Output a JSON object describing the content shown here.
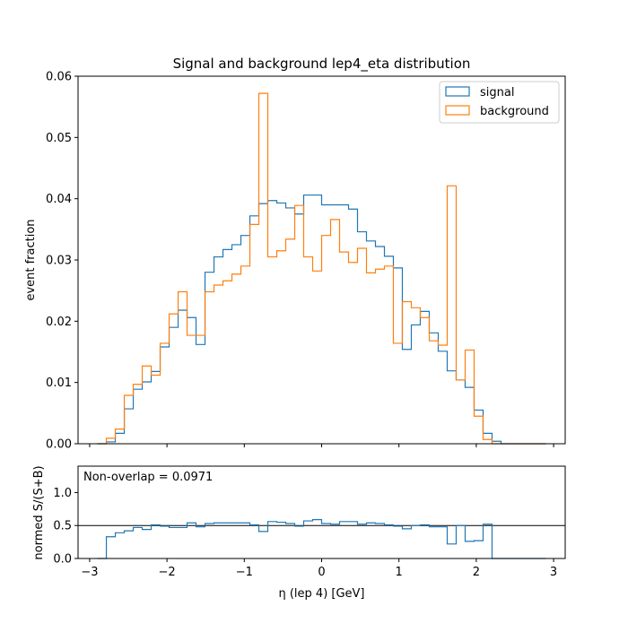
{
  "colors": {
    "signal": "#1f77b4",
    "background": "#ff7f0e",
    "axis": "#000000"
  },
  "chart_data": [
    {
      "type": "histogram",
      "title": "Signal and background lep4_eta distribution",
      "ylabel": "event fraction",
      "xlim": [
        -3.15,
        3.15
      ],
      "ylim": [
        0,
        0.06
      ],
      "yticks": [
        0.0,
        0.01,
        0.02,
        0.03,
        0.04,
        0.05,
        0.06
      ],
      "ytick_labels": [
        "0.00",
        "0.01",
        "0.02",
        "0.03",
        "0.04",
        "0.05",
        "0.06"
      ],
      "xticks": [
        -3,
        -2,
        -1,
        0,
        1,
        2,
        3
      ],
      "bin_edges_range": [
        -2.9,
        2.9
      ],
      "bin_count": 50,
      "legend": {
        "location": "top-right",
        "entries": [
          "signal",
          "background"
        ]
      },
      "series": [
        {
          "name": "signal",
          "values": [
            0,
            0.0003,
            0.0017,
            0.0057,
            0.0089,
            0.0101,
            0.0118,
            0.0158,
            0.019,
            0.0218,
            0.0206,
            0.0162,
            0.028,
            0.0305,
            0.0317,
            0.0325,
            0.034,
            0.0372,
            0.0392,
            0.0397,
            0.0393,
            0.0385,
            0.0375,
            0.0406,
            0.0406,
            0.039,
            0.039,
            0.039,
            0.0383,
            0.0346,
            0.0331,
            0.0322,
            0.0306,
            0.0287,
            0.0154,
            0.0194,
            0.0216,
            0.0181,
            0.0151,
            0.0119,
            0.0104,
            0.0092,
            0.0055,
            0.0017,
            0.0004,
            0,
            0,
            0,
            0,
            0
          ]
        },
        {
          "name": "background",
          "values": [
            0,
            0.0009,
            0.0024,
            0.0079,
            0.0097,
            0.0127,
            0.0112,
            0.0164,
            0.0212,
            0.0248,
            0.0177,
            0.0177,
            0.0248,
            0.0259,
            0.0266,
            0.0277,
            0.029,
            0.0358,
            0.0572,
            0.0305,
            0.0315,
            0.0334,
            0.0389,
            0.0305,
            0.0282,
            0.034,
            0.0366,
            0.0313,
            0.0296,
            0.0319,
            0.0279,
            0.0285,
            0.029,
            0.0164,
            0.0232,
            0.0222,
            0.0206,
            0.0168,
            0.0161,
            0.0421,
            0.0104,
            0.0153,
            0.0045,
            0.0007,
            0,
            0,
            0,
            0,
            0,
            0
          ]
        }
      ]
    },
    {
      "type": "step",
      "ylabel": "normed S/(S+B)",
      "xlabel": "η (lep 4) [GeV]",
      "annotation": "Non-overlap = 0.0971",
      "xlim": [
        -3.15,
        3.15
      ],
      "ylim": [
        0,
        1.4
      ],
      "yticks": [
        0.0,
        0.5,
        1.0
      ],
      "ytick_labels": [
        "0.0",
        "0.5",
        "1.0"
      ],
      "xticks": [
        -3,
        -2,
        -1,
        0,
        1,
        2,
        3
      ],
      "xtick_labels": [
        "−3",
        "−2",
        "−1",
        "0",
        "1",
        "2",
        "3"
      ],
      "reference_line": 0.5,
      "values": [
        0,
        0.33,
        0.39,
        0.42,
        0.47,
        0.44,
        0.51,
        0.49,
        0.47,
        0.47,
        0.54,
        0.48,
        0.53,
        0.54,
        0.54,
        0.54,
        0.54,
        0.51,
        0.41,
        0.56,
        0.55,
        0.53,
        0.49,
        0.57,
        0.59,
        0.53,
        0.52,
        0.56,
        0.56,
        0.52,
        0.54,
        0.53,
        0.51,
        0.49,
        0.45,
        0.5,
        0.51,
        0.48,
        0.48,
        0.22,
        0.5,
        0.26,
        0.27,
        0.52,
        0,
        0,
        0,
        0,
        0,
        0
      ]
    }
  ]
}
